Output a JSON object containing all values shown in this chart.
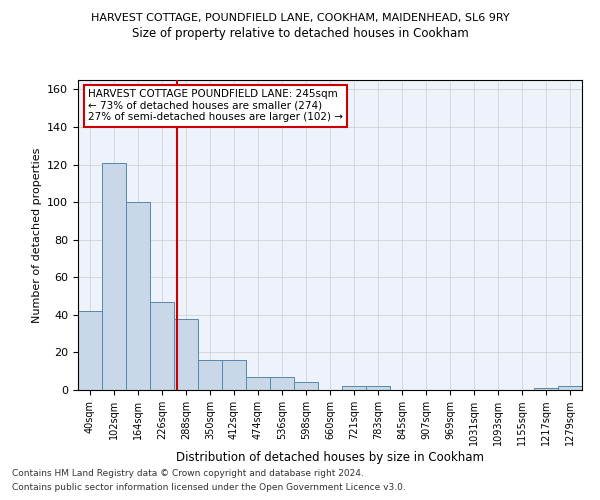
{
  "title1": "HARVEST COTTAGE, POUNDFIELD LANE, COOKHAM, MAIDENHEAD, SL6 9RY",
  "title2": "Size of property relative to detached houses in Cookham",
  "xlabel": "Distribution of detached houses by size in Cookham",
  "ylabel": "Number of detached properties",
  "footer1": "Contains HM Land Registry data © Crown copyright and database right 2024.",
  "footer2": "Contains public sector information licensed under the Open Government Licence v3.0.",
  "annotation_line1": "HARVEST COTTAGE POUNDFIELD LANE: 245sqm",
  "annotation_line2": "← 73% of detached houses are smaller (274)",
  "annotation_line3": "27% of semi-detached houses are larger (102) →",
  "bar_labels": [
    "40sqm",
    "102sqm",
    "164sqm",
    "226sqm",
    "288sqm",
    "350sqm",
    "412sqm",
    "474sqm",
    "536sqm",
    "598sqm",
    "660sqm",
    "721sqm",
    "783sqm",
    "845sqm",
    "907sqm",
    "969sqm",
    "1031sqm",
    "1093sqm",
    "1155sqm",
    "1217sqm",
    "1279sqm"
  ],
  "bar_values": [
    42,
    121,
    100,
    47,
    38,
    16,
    16,
    7,
    7,
    4,
    0,
    2,
    2,
    0,
    0,
    0,
    0,
    0,
    0,
    1,
    2
  ],
  "bar_color": "#c8d8e8",
  "bar_edge_color": "#5588aa",
  "vline_x": 3.62,
  "vline_color": "#cc0000",
  "ylim": [
    0,
    165
  ],
  "yticks": [
    0,
    20,
    40,
    60,
    80,
    100,
    120,
    140,
    160
  ],
  "bg_color": "#eef2fb",
  "grid_color": "#cccccc"
}
